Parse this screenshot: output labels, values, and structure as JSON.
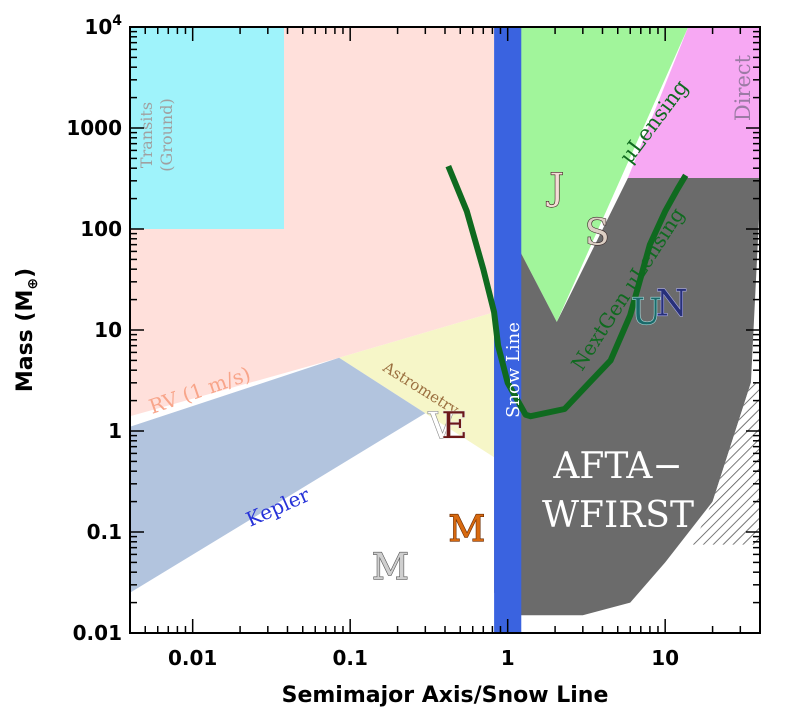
{
  "chart_data": {
    "type": "region",
    "xlabel": "Semimajor Axis/Snow Line",
    "ylabel": "Mass (M",
    "ylabel_symbol": "⊕",
    "ylabel_close": ")",
    "x_scale": "log",
    "y_scale": "log",
    "xlim": [
      0.004,
      40
    ],
    "ylim": [
      0.01,
      10000
    ],
    "x_ticks": [
      {
        "value": 0.01,
        "label": "0.01"
      },
      {
        "value": 0.1,
        "label": "0.1"
      },
      {
        "value": 1,
        "label": "1"
      },
      {
        "value": 10,
        "label": "10"
      }
    ],
    "y_ticks": [
      {
        "value": 0.01,
        "label": "0.01"
      },
      {
        "value": 0.1,
        "label": "0.1"
      },
      {
        "value": 1,
        "label": "1"
      },
      {
        "value": 10,
        "label": "10"
      },
      {
        "value": 100,
        "label": "100"
      },
      {
        "value": 1000,
        "label": "1000"
      },
      {
        "value": 10000,
        "label": "10",
        "sup": "4"
      }
    ],
    "regions": [
      {
        "name": "RV (1 m/s)",
        "color": "#ffe0db",
        "polygon": [
          [
            0.004,
            1.4
          ],
          [
            0.085,
            5.3
          ],
          [
            0.82,
            15
          ],
          [
            0.82,
            10000
          ],
          [
            0.004,
            10000
          ]
        ]
      },
      {
        "name": "Transits (Ground)",
        "color": "#9ff3fb",
        "polygon": [
          [
            0.004,
            100
          ],
          [
            0.038,
            100
          ],
          [
            0.038,
            10000
          ],
          [
            0.004,
            10000
          ]
        ]
      },
      {
        "name": "Astrometry",
        "color": "#f6f6c8",
        "polygon": [
          [
            0.085,
            5.3
          ],
          [
            0.82,
            15
          ],
          [
            0.82,
            0.55
          ],
          [
            0.3,
            1.5
          ]
        ]
      },
      {
        "name": "Kepler",
        "color": "#b2c4de",
        "polygon": [
          [
            0.004,
            1.1
          ],
          [
            0.085,
            5.3
          ],
          [
            0.3,
            1.5
          ],
          [
            0.004,
            0.025
          ]
        ]
      },
      {
        "name": "μLensing",
        "color": "#a1f59b",
        "polygon": [
          [
            1.2,
            10000
          ],
          [
            14,
            10000
          ],
          [
            2.05,
            12
          ],
          [
            1.2,
            60
          ]
        ]
      },
      {
        "name": "Direct",
        "color": "#f7a8f3",
        "polygon": [
          [
            5.8,
            320
          ],
          [
            14,
            10000
          ],
          [
            40,
            10000
          ],
          [
            40,
            320
          ]
        ]
      },
      {
        "name": "AFTA-WFIRST",
        "color": "#6b6b6b",
        "polygon": [
          [
            0.35,
            1.2
          ],
          [
            0.82,
            0.55
          ],
          [
            0.82,
            0.025
          ],
          [
            1.2,
            0.015
          ],
          [
            3,
            0.015
          ],
          [
            6,
            0.02
          ],
          [
            10,
            0.05
          ],
          [
            20,
            0.2
          ],
          [
            35,
            3
          ],
          [
            40,
            200
          ],
          [
            40,
            320
          ],
          [
            5.8,
            320
          ],
          [
            2.05,
            12
          ],
          [
            1.2,
            60
          ],
          [
            0.82,
            15
          ],
          [
            0.82,
            0.55
          ]
        ]
      },
      {
        "name": "hatched",
        "color": "#ffffff",
        "polygon": [
          [
            15,
            0.075
          ],
          [
            40,
            0.075
          ],
          [
            40,
            3
          ],
          [
            35,
            3
          ],
          [
            20,
            0.2
          ]
        ]
      }
    ],
    "snow_line": {
      "label": "Snow Line",
      "x_range": [
        0.82,
        1.22
      ],
      "color": "#3a63e0"
    },
    "curves": [
      {
        "name": "current μLensing sensitivity",
        "color": "#0f6a1f",
        "points": [
          [
            0.42,
            420
          ],
          [
            0.55,
            150
          ],
          [
            0.7,
            40
          ],
          [
            0.82,
            15
          ],
          [
            0.87,
            7
          ],
          [
            1.0,
            3
          ],
          [
            1.3,
            1.45
          ],
          [
            1.4,
            1.4
          ],
          [
            2.3,
            1.65
          ],
          [
            3.3,
            3
          ],
          [
            4.5,
            5
          ],
          [
            6,
            14
          ],
          [
            8,
            70
          ],
          [
            10,
            150
          ],
          [
            12,
            250
          ],
          [
            13.5,
            340
          ]
        ]
      }
    ],
    "region_labels": [
      {
        "text": "Transits",
        "color": "#a0a0a0"
      },
      {
        "text": "(Ground)",
        "color": "#a0a0a0"
      },
      {
        "text": "RV (1 m/s)",
        "color": "#f8a58a"
      },
      {
        "text": "Astrometry",
        "color": "#9b7040"
      },
      {
        "text": "Kepler",
        "color": "#2632d8"
      },
      {
        "text": "Snow Line",
        "color": "#ffffff"
      },
      {
        "text": "μLensing",
        "color": "#0f6a1f"
      },
      {
        "text": "NextGen μLensing",
        "color": "#0f6a1f"
      },
      {
        "text": "Direct",
        "color": "#9c7ba5"
      },
      {
        "text": "AFTA−",
        "color": "#ffffff"
      },
      {
        "text": "WFIRST",
        "color": "#ffffff"
      }
    ],
    "planets": [
      {
        "letter": "V",
        "x": 0.38,
        "y": 1.03,
        "fill": "#ffffff",
        "stroke": "#8a8a8a"
      },
      {
        "letter": "E",
        "x": 0.46,
        "y": 1.05,
        "fill": "#6b1818",
        "stroke": "#e8e8e8"
      },
      {
        "letter": "M",
        "x": 0.18,
        "y": 0.042,
        "fill": "#cfcfcf",
        "stroke": "#555555"
      },
      {
        "letter": "M",
        "x": 0.55,
        "y": 0.1,
        "fill": "#d86a10",
        "stroke": "#6a2a00"
      },
      {
        "letter": "J",
        "x": 2.05,
        "y": 240,
        "fill": "#f4ddd7",
        "stroke": "#3a1a1a"
      },
      {
        "letter": "S",
        "x": 3.7,
        "y": 85,
        "fill": "#dccfc4",
        "stroke": "#3a2a2a"
      },
      {
        "letter": "U",
        "x": 7.6,
        "y": 14,
        "fill": "#1a6a6a",
        "stroke": "#a8d8d8"
      },
      {
        "letter": "N",
        "x": 11,
        "y": 17,
        "fill": "#27307a",
        "stroke": "#a8a8e0"
      }
    ]
  }
}
